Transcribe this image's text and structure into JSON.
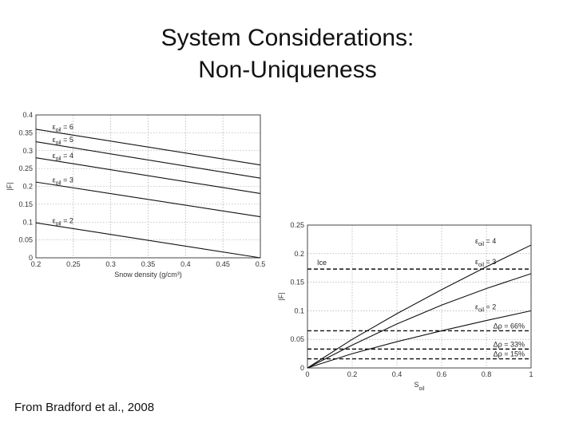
{
  "slide": {
    "title_line1": "System Considerations:",
    "title_line2": "Non-Uniqueness",
    "footer": "From Bradford et al., 2008"
  },
  "chart_data": [
    {
      "type": "line",
      "xlabel": "Snow density (g/cm³)",
      "ylabel": "|F|",
      "xlim": [
        0.2,
        0.5
      ],
      "ylim": [
        0,
        0.4
      ],
      "xticks": [
        "0.2",
        "0.25",
        "0.3",
        "0.35",
        "0.4",
        "0.45",
        "0.5"
      ],
      "yticks": [
        "0",
        "0.05",
        "0.1",
        "0.15",
        "0.2",
        "0.25",
        "0.3",
        "0.35",
        "0.4"
      ],
      "grid": true,
      "series": [
        {
          "name": "εoil = 6",
          "x": [
            0.2,
            0.5
          ],
          "y": [
            0.36,
            0.26
          ]
        },
        {
          "name": "εoil = 5",
          "x": [
            0.2,
            0.5
          ],
          "y": [
            0.325,
            0.223
          ]
        },
        {
          "name": "εoil = 4",
          "x": [
            0.2,
            0.5
          ],
          "y": [
            0.28,
            0.18
          ]
        },
        {
          "name": "εoil = 3",
          "x": [
            0.2,
            0.5
          ],
          "y": [
            0.212,
            0.115
          ]
        },
        {
          "name": "εoil = 2",
          "x": [
            0.2,
            0.5
          ],
          "y": [
            0.098,
            0.0
          ]
        }
      ]
    },
    {
      "type": "line",
      "xlabel": "S",
      "xlabel_sub": "oil",
      "ylabel": "|F|",
      "xlim": [
        0,
        1
      ],
      "ylim": [
        0,
        0.25
      ],
      "xticks": [
        "0",
        "0.2",
        "0.4",
        "0.6",
        "0.8",
        "1"
      ],
      "yticks": [
        "0",
        "0.05",
        "0.1",
        "0.15",
        "0.2",
        "0.25"
      ],
      "grid": true,
      "series": [
        {
          "name": "εoil = 4",
          "x": [
            0,
            0.2,
            0.4,
            0.6,
            0.8,
            1
          ],
          "y": [
            0,
            0.05,
            0.095,
            0.137,
            0.177,
            0.215
          ]
        },
        {
          "name": "εoil = 3",
          "x": [
            0,
            0.2,
            0.4,
            0.6,
            0.8,
            1
          ],
          "y": [
            0,
            0.04,
            0.077,
            0.11,
            0.139,
            0.165
          ]
        },
        {
          "name": "εoil = 2",
          "x": [
            0,
            0.2,
            0.4,
            0.6,
            0.8,
            1
          ],
          "y": [
            0,
            0.025,
            0.046,
            0.065,
            0.083,
            0.1
          ]
        }
      ],
      "hlines": [
        {
          "label": "Ice",
          "y": 0.173
        },
        {
          "label": "Δρ = 66%",
          "y": 0.065
        },
        {
          "label": "Δρ = 33%",
          "y": 0.033
        },
        {
          "label": "Δρ = 15%",
          "y": 0.016
        }
      ]
    }
  ]
}
